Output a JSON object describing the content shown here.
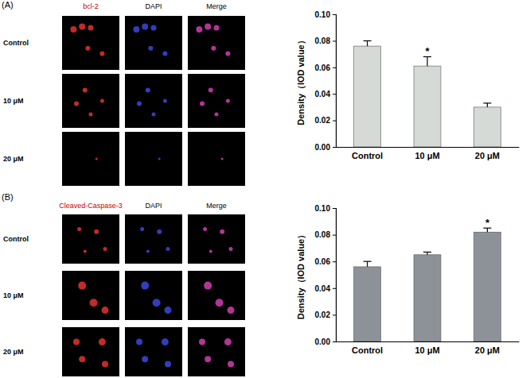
{
  "panels": [
    {
      "label": "(A)",
      "columns": [
        "bcl-2",
        "DAPI",
        "Merge"
      ],
      "rows": [
        "Control",
        "10 μM",
        "20 μM"
      ]
    },
    {
      "label": "(B)",
      "columns": [
        "Cleaved-Caspase-3",
        "DAPI",
        "Merge"
      ],
      "rows": [
        "Control",
        "10 μM",
        "20 μM"
      ]
    }
  ],
  "chart_data": [
    {
      "type": "bar",
      "categories": [
        "Control",
        "10 μM",
        "20 μM"
      ],
      "values": [
        0.076,
        0.061,
        0.03
      ],
      "errors": [
        0.004,
        0.007,
        0.003
      ],
      "annotations": [
        null,
        "*",
        null
      ],
      "color": "#d6dad6",
      "ylabel": "Density（IOD value）",
      "ylim": [
        0,
        0.1
      ],
      "yticks": [
        {
          "value": 0,
          "label": "0.00"
        },
        {
          "value": 0.02,
          "label": "0.02"
        },
        {
          "value": 0.04,
          "label": "0.04"
        },
        {
          "value": 0.06,
          "label": "0.06"
        },
        {
          "value": 0.08,
          "label": "0.08"
        },
        {
          "value": 0.1,
          "label": "0.10"
        }
      ]
    },
    {
      "type": "bar",
      "categories": [
        "Control",
        "10 μM",
        "20 μM"
      ],
      "values": [
        0.056,
        0.065,
        0.082
      ],
      "errors": [
        0.004,
        0.002,
        0.003
      ],
      "annotations": [
        null,
        null,
        "*"
      ],
      "color": "#8c9298",
      "ylabel": "Density（IOD value）",
      "ylim": [
        0,
        0.1
      ],
      "yticks": [
        {
          "value": 0,
          "label": "0.00"
        },
        {
          "value": 0.02,
          "label": "0.02"
        },
        {
          "value": 0.04,
          "label": "0.04"
        },
        {
          "value": 0.06,
          "label": "0.06"
        },
        {
          "value": 0.08,
          "label": "0.08"
        },
        {
          "value": 0.1,
          "label": "0.10"
        }
      ]
    }
  ]
}
